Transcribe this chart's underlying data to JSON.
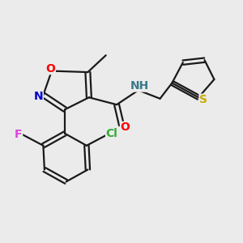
{
  "bg_color": "#ebebeb",
  "bond_color": "#1a1a1a",
  "atom_colors": {
    "O": "#ff0000",
    "N_ring": "#0000cc",
    "N_amide": "#3a7a8a",
    "F": "#dd44dd",
    "Cl": "#33aa33",
    "S": "#ccaa00",
    "C": "#1a1a1a"
  },
  "font_size": 10,
  "figsize": [
    3.0,
    3.0
  ],
  "dpi": 100
}
